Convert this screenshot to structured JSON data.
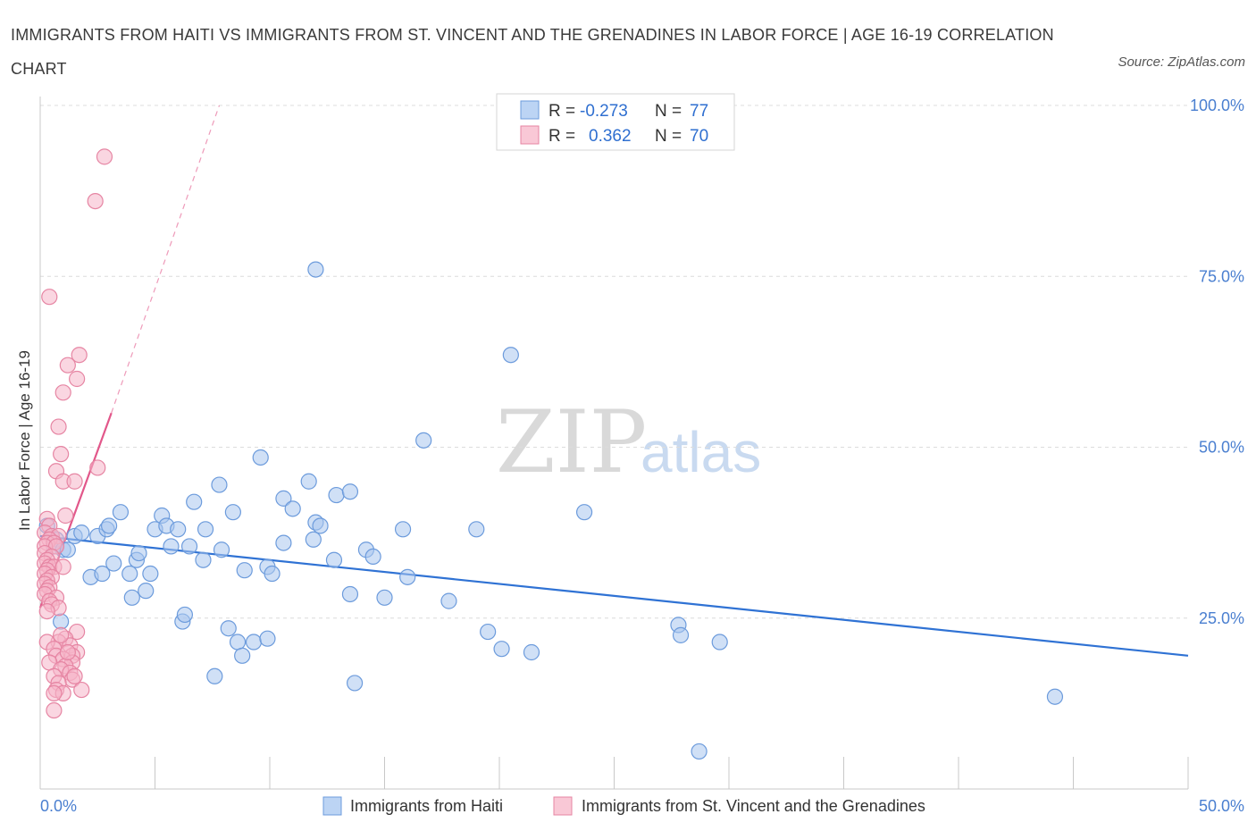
{
  "title": "IMMIGRANTS FROM HAITI VS IMMIGRANTS FROM ST. VINCENT AND THE GRENADINES IN LABOR FORCE | AGE 16-19 CORRELATION CHART",
  "source": "Source: ZipAtlas.com",
  "watermark": {
    "zip": "ZIP",
    "atlas": "atlas"
  },
  "legend": {
    "r_label": "R =",
    "n_label": "N =",
    "rows": [
      {
        "r": "-0.273",
        "n": "77"
      },
      {
        "r": "0.362",
        "n": "70"
      }
    ]
  },
  "chart_data": {
    "type": "scatter",
    "title": "IMMIGRANTS FROM HAITI VS IMMIGRANTS FROM ST. VINCENT AND THE GRENADINES IN LABOR FORCE | AGE 16-19 CORRELATION CHART",
    "xlabel": "",
    "ylabel": "In Labor Force | Age 16-19",
    "xlim": [
      0,
      50
    ],
    "ylim": [
      0,
      100
    ],
    "x_tick_labels": [
      "0.0%",
      "50.0%"
    ],
    "y_tick_labels": [
      "25.0%",
      "50.0%",
      "75.0%",
      "100.0%"
    ],
    "y_ticks": [
      25,
      50,
      75,
      100
    ],
    "grid": true,
    "legend_placement": "top-center",
    "series": [
      {
        "name": "Immigrants from Haiti",
        "color": "#a9c6ef",
        "stroke": "#6c9bdc",
        "trend_color": "#2f72d4",
        "trend": {
          "x0": 0,
          "y0": 37.0,
          "x1": 50,
          "y1": 19.5
        },
        "points": [
          [
            0.3,
            38.5
          ],
          [
            0.5,
            37.0
          ],
          [
            0.7,
            36.5
          ],
          [
            0.6,
            35.5
          ],
          [
            0.9,
            24.5
          ],
          [
            1.0,
            35.0
          ],
          [
            1.2,
            35.0
          ],
          [
            1.5,
            37.0
          ],
          [
            1.8,
            37.5
          ],
          [
            2.2,
            31.0
          ],
          [
            2.5,
            37.0
          ],
          [
            2.7,
            31.5
          ],
          [
            2.9,
            38.0
          ],
          [
            3.0,
            38.5
          ],
          [
            3.2,
            33.0
          ],
          [
            3.5,
            40.5
          ],
          [
            3.9,
            31.5
          ],
          [
            4.0,
            28.0
          ],
          [
            4.2,
            33.5
          ],
          [
            4.3,
            34.5
          ],
          [
            4.6,
            29.0
          ],
          [
            4.8,
            31.5
          ],
          [
            5.0,
            38.0
          ],
          [
            5.3,
            40.0
          ],
          [
            5.5,
            38.5
          ],
          [
            5.7,
            35.5
          ],
          [
            6.0,
            38.0
          ],
          [
            6.2,
            24.5
          ],
          [
            6.3,
            25.5
          ],
          [
            6.5,
            35.5
          ],
          [
            6.7,
            42.0
          ],
          [
            7.1,
            33.5
          ],
          [
            7.2,
            38.0
          ],
          [
            7.6,
            16.5
          ],
          [
            7.8,
            44.5
          ],
          [
            7.9,
            35.0
          ],
          [
            8.2,
            23.5
          ],
          [
            8.4,
            40.5
          ],
          [
            8.6,
            21.5
          ],
          [
            8.8,
            19.5
          ],
          [
            8.9,
            32.0
          ],
          [
            9.3,
            21.5
          ],
          [
            9.6,
            48.5
          ],
          [
            9.9,
            22.0
          ],
          [
            9.9,
            32.5
          ],
          [
            10.1,
            31.5
          ],
          [
            10.6,
            36.0
          ],
          [
            10.6,
            42.5
          ],
          [
            11.0,
            41.0
          ],
          [
            11.7,
            45.0
          ],
          [
            11.9,
            36.5
          ],
          [
            12.0,
            39.0
          ],
          [
            12.2,
            38.5
          ],
          [
            12.0,
            76.0
          ],
          [
            12.8,
            33.5
          ],
          [
            12.9,
            43.0
          ],
          [
            13.5,
            43.5
          ],
          [
            13.5,
            28.5
          ],
          [
            13.7,
            15.5
          ],
          [
            14.2,
            35.0
          ],
          [
            14.5,
            34.0
          ],
          [
            15.0,
            28.0
          ],
          [
            15.8,
            38.0
          ],
          [
            16.0,
            31.0
          ],
          [
            16.7,
            51.0
          ],
          [
            17.8,
            27.5
          ],
          [
            19.0,
            38.0
          ],
          [
            19.5,
            23.0
          ],
          [
            20.1,
            20.5
          ],
          [
            20.5,
            63.5
          ],
          [
            21.4,
            20.0
          ],
          [
            23.7,
            40.5
          ],
          [
            27.8,
            24.0
          ],
          [
            27.9,
            22.5
          ],
          [
            29.6,
            21.5
          ],
          [
            44.2,
            13.5
          ],
          [
            28.7,
            5.5
          ]
        ]
      },
      {
        "name": "Immigrants from St. Vincent and the Grenadines",
        "color": "#f6b5c8",
        "stroke": "#e685a3",
        "trend_color": "#e2578a",
        "trend": {
          "x0": 0,
          "y0": 26.5,
          "x1": 3.1,
          "y1": 55.0
        },
        "trend_dashed": {
          "x0": 3.1,
          "y0": 55.0,
          "x1": 7.8,
          "y1": 100.0
        },
        "points": [
          [
            2.8,
            92.5
          ],
          [
            2.4,
            86.0
          ],
          [
            0.4,
            72.0
          ],
          [
            1.7,
            63.5
          ],
          [
            1.2,
            62.0
          ],
          [
            1.6,
            60.0
          ],
          [
            1.0,
            58.0
          ],
          [
            0.8,
            53.0
          ],
          [
            0.9,
            49.0
          ],
          [
            2.5,
            47.0
          ],
          [
            0.7,
            46.5
          ],
          [
            1.0,
            45.0
          ],
          [
            1.5,
            45.0
          ],
          [
            1.1,
            40.0
          ],
          [
            0.3,
            39.5
          ],
          [
            0.4,
            38.5
          ],
          [
            0.2,
            37.5
          ],
          [
            0.5,
            37.0
          ],
          [
            0.8,
            37.0
          ],
          [
            0.4,
            36.5
          ],
          [
            0.3,
            36.0
          ],
          [
            0.6,
            36.0
          ],
          [
            0.2,
            35.5
          ],
          [
            0.7,
            35.5
          ],
          [
            0.2,
            34.5
          ],
          [
            0.5,
            34.0
          ],
          [
            0.3,
            33.5
          ],
          [
            0.2,
            33.0
          ],
          [
            0.4,
            32.5
          ],
          [
            0.6,
            32.5
          ],
          [
            1.0,
            32.5
          ],
          [
            0.3,
            32.0
          ],
          [
            0.2,
            31.5
          ],
          [
            0.5,
            31.0
          ],
          [
            0.3,
            30.5
          ],
          [
            0.2,
            30.0
          ],
          [
            0.4,
            29.5
          ],
          [
            0.3,
            29.0
          ],
          [
            0.2,
            28.5
          ],
          [
            0.7,
            28.0
          ],
          [
            0.4,
            27.5
          ],
          [
            0.5,
            27.0
          ],
          [
            0.8,
            26.5
          ],
          [
            0.3,
            26.0
          ],
          [
            1.6,
            23.0
          ],
          [
            1.1,
            22.0
          ],
          [
            0.8,
            21.5
          ],
          [
            0.3,
            21.5
          ],
          [
            1.3,
            21.0
          ],
          [
            0.6,
            20.5
          ],
          [
            1.6,
            20.0
          ],
          [
            1.4,
            19.5
          ],
          [
            0.7,
            19.5
          ],
          [
            1.0,
            19.0
          ],
          [
            1.4,
            18.5
          ],
          [
            0.4,
            18.5
          ],
          [
            1.1,
            18.0
          ],
          [
            0.9,
            17.5
          ],
          [
            1.3,
            17.0
          ],
          [
            0.6,
            16.5
          ],
          [
            1.4,
            16.0
          ],
          [
            0.8,
            15.5
          ],
          [
            1.8,
            14.5
          ],
          [
            0.7,
            14.5
          ],
          [
            1.0,
            14.0
          ],
          [
            0.6,
            14.0
          ],
          [
            0.6,
            11.5
          ],
          [
            1.2,
            20.0
          ],
          [
            0.9,
            22.5
          ],
          [
            1.5,
            16.5
          ]
        ]
      }
    ]
  }
}
